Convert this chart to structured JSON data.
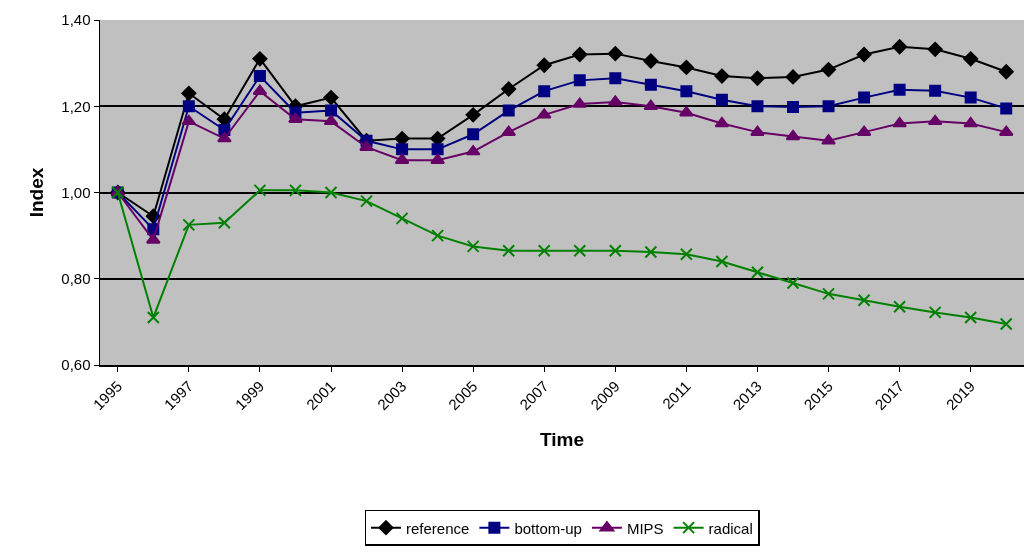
{
  "chart_data": {
    "type": "line",
    "xlabel": "Time",
    "ylabel": "Index",
    "x": [
      1995,
      1996,
      1997,
      1998,
      1999,
      2000,
      2001,
      2002,
      2003,
      2004,
      2005,
      2006,
      2007,
      2008,
      2009,
      2010,
      2011,
      2012,
      2013,
      2014,
      2015,
      2016,
      2017,
      2018,
      2019,
      2020
    ],
    "xlim": [
      1994.5,
      2020.5
    ],
    "xticks": [
      1995,
      1997,
      1999,
      2001,
      2003,
      2005,
      2007,
      2009,
      2011,
      2013,
      2015,
      2017,
      2019
    ],
    "ylim": [
      0.6,
      1.4
    ],
    "yticks": [
      {
        "value": 0.6,
        "label": "0,60"
      },
      {
        "value": 0.8,
        "label": "0,80"
      },
      {
        "value": 1.0,
        "label": "1,00"
      },
      {
        "value": 1.2,
        "label": "1,20"
      },
      {
        "value": 1.4,
        "label": "1,40"
      }
    ],
    "grid": "y",
    "legend": "bottom",
    "line_style": "solid",
    "series": [
      {
        "name": "reference",
        "color": "#000000",
        "marker": "diamond",
        "values": [
          1.0,
          0.945,
          1.23,
          1.17,
          1.31,
          1.2,
          1.22,
          1.12,
          1.125,
          1.125,
          1.18,
          1.24,
          1.295,
          1.32,
          1.322,
          1.305,
          1.29,
          1.27,
          1.265,
          1.268,
          1.285,
          1.32,
          1.338,
          1.332,
          1.31,
          1.28
        ]
      },
      {
        "name": "bottom-up",
        "color": "#000080",
        "marker": "square",
        "values": [
          1.0,
          0.915,
          1.2,
          1.145,
          1.27,
          1.185,
          1.19,
          1.12,
          1.1,
          1.1,
          1.135,
          1.19,
          1.235,
          1.26,
          1.265,
          1.25,
          1.235,
          1.215,
          1.2,
          1.198,
          1.2,
          1.22,
          1.238,
          1.236,
          1.22,
          1.195
        ]
      },
      {
        "name": "MIPS",
        "color": "#660066",
        "marker": "triangle",
        "values": [
          1.0,
          0.89,
          1.165,
          1.125,
          1.235,
          1.17,
          1.165,
          1.105,
          1.075,
          1.075,
          1.095,
          1.14,
          1.18,
          1.205,
          1.21,
          1.2,
          1.185,
          1.16,
          1.14,
          1.13,
          1.12,
          1.14,
          1.16,
          1.165,
          1.16,
          1.14
        ]
      },
      {
        "name": "radical",
        "color": "#008000",
        "marker": "cross",
        "values": [
          1.0,
          0.71,
          0.925,
          0.93,
          1.005,
          1.005,
          1.0,
          0.98,
          0.94,
          0.9,
          0.875,
          0.865,
          0.865,
          0.865,
          0.865,
          0.862,
          0.857,
          0.84,
          0.815,
          0.79,
          0.765,
          0.75,
          0.735,
          0.722,
          0.71,
          0.695
        ]
      }
    ]
  }
}
